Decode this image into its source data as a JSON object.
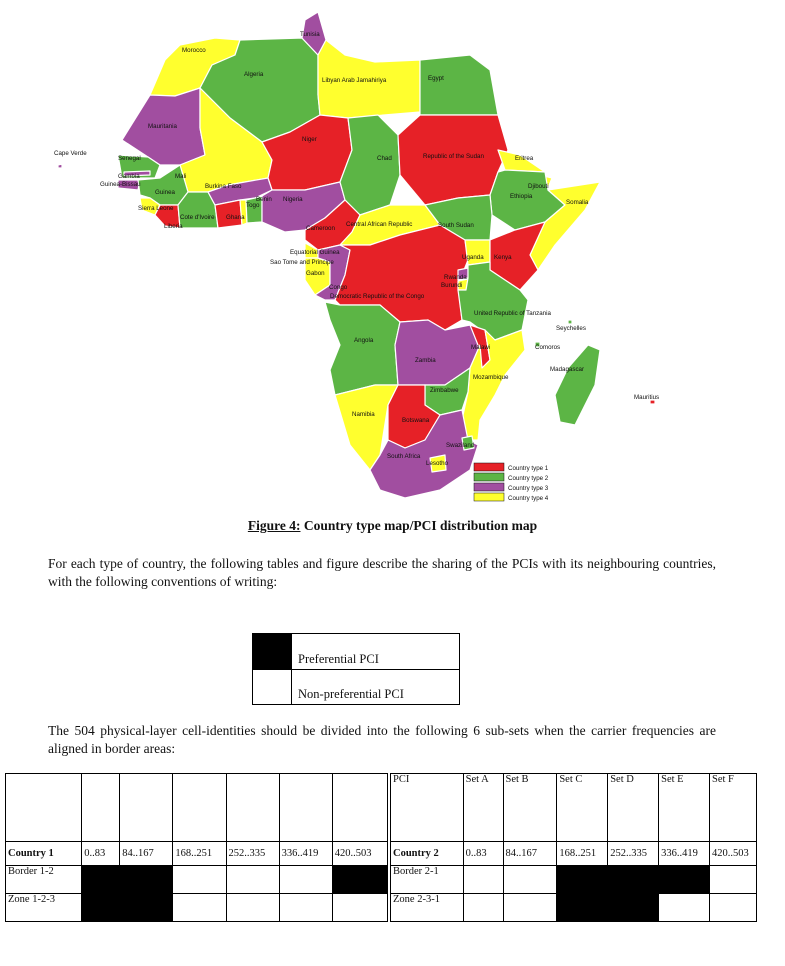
{
  "colors": {
    "type1": "#e62127",
    "type2": "#5cb545",
    "type3": "#a14ea0",
    "type4": "#ffff2e",
    "sea": "#ffffff"
  },
  "map": {
    "labels": {
      "tunisia": "Tunisia",
      "morocco": "Morocco",
      "algeria": "Algeria",
      "libya": "Libyan Arab Jamahiriya",
      "egypt": "Egypt",
      "mauritania": "Mauritania",
      "cape_verde": "Cape Verde",
      "senegal": "Senegal",
      "gambia": "Gambia",
      "guinea_bissau": "Guinea-Bissau",
      "mali": "Mali",
      "niger": "Niger",
      "chad": "Chad",
      "sudan": "Republic of the Sudan",
      "eritrea": "Eritrea",
      "djibouti": "Djibouti",
      "guinea": "Guinea",
      "burkina": "Burkina Faso",
      "benin": "Benin",
      "nigeria": "Nigeria",
      "togo": "Togo",
      "ethiopia": "Ethiopia",
      "somalia": "Somalia",
      "sierra_leone": "Sierra Leone",
      "cote": "Cote d'Ivoire",
      "ghana": "Ghana",
      "liberia": "Liberia",
      "cameroon": "Cameroon",
      "car": "Central African Republic",
      "south_sudan": "South Sudan",
      "eq_guinea": "Equatorial Guinea",
      "sao_tome": "Sao Tome and Principe",
      "gabon": "Gabon",
      "uganda": "Uganda",
      "kenya": "Kenya",
      "congo": "Congo",
      "rwanda": "Rwanda",
      "burundi": "Burundi",
      "drc": "Democratic Republic of the Congo",
      "tanzania": "United Republic of Tanzania",
      "seychelles": "Seychelles",
      "angola": "Angola",
      "comoros": "Comoros",
      "malawi": "Malawi",
      "zambia": "Zambia",
      "mozambique": "Mozambique",
      "madagascar": "Madagascar",
      "zimbabwe": "Zimbabwe",
      "mauritius": "Mauritius",
      "namibia": "Namibia",
      "botswana": "Botswana",
      "swaziland": "Swaziland",
      "south_africa": "South Africa",
      "lesotho": "Lesotho"
    },
    "legend": [
      "Country type 1",
      "Country type 2",
      "Country type 3",
      "Country type 4"
    ]
  },
  "figure": {
    "label": "Figure 4:",
    "title": " Country type map/PCI distribution map"
  },
  "text": {
    "para1": "For each type of country, the following tables and figure describe the sharing of the PCIs with its neighbouring countries, with the following conventions of writing:",
    "para2": "The 504 physical-layer cell-identities should be divided into the following 6 sub-sets when the carrier frequencies are aligned in border areas:"
  },
  "conventions": [
    {
      "label": "Preferential PCI",
      "filled": true
    },
    {
      "label": "Non-preferential PCI",
      "filled": false
    }
  ],
  "table_left": {
    "header": [
      "",
      "",
      "",
      "",
      "",
      "",
      ""
    ],
    "ranges_label": "Country 1",
    "ranges": [
      "0..83",
      "84..167",
      "168..251",
      "252..335",
      "336..419",
      "420..503"
    ],
    "rows": [
      {
        "label": "Border 1-2",
        "fill": [
          true,
          true,
          false,
          false,
          false,
          true
        ]
      },
      {
        "label": "Zone 1-2-3",
        "fill": [
          true,
          true,
          false,
          false,
          false,
          false
        ]
      }
    ]
  },
  "table_right": {
    "header": [
      "PCI",
      "Set A",
      "Set B",
      "Set C",
      "Set D",
      "Set E",
      "Set F"
    ],
    "ranges_label": "Country 2",
    "ranges": [
      "0..83",
      "84..167",
      "168..251",
      "252..335",
      "336..419",
      "420..503"
    ],
    "rows": [
      {
        "label": "Border 2-1",
        "fill": [
          false,
          false,
          true,
          true,
          true,
          false
        ]
      },
      {
        "label": "Zone 2-3-1",
        "fill": [
          false,
          false,
          true,
          true,
          false,
          false
        ]
      }
    ]
  }
}
